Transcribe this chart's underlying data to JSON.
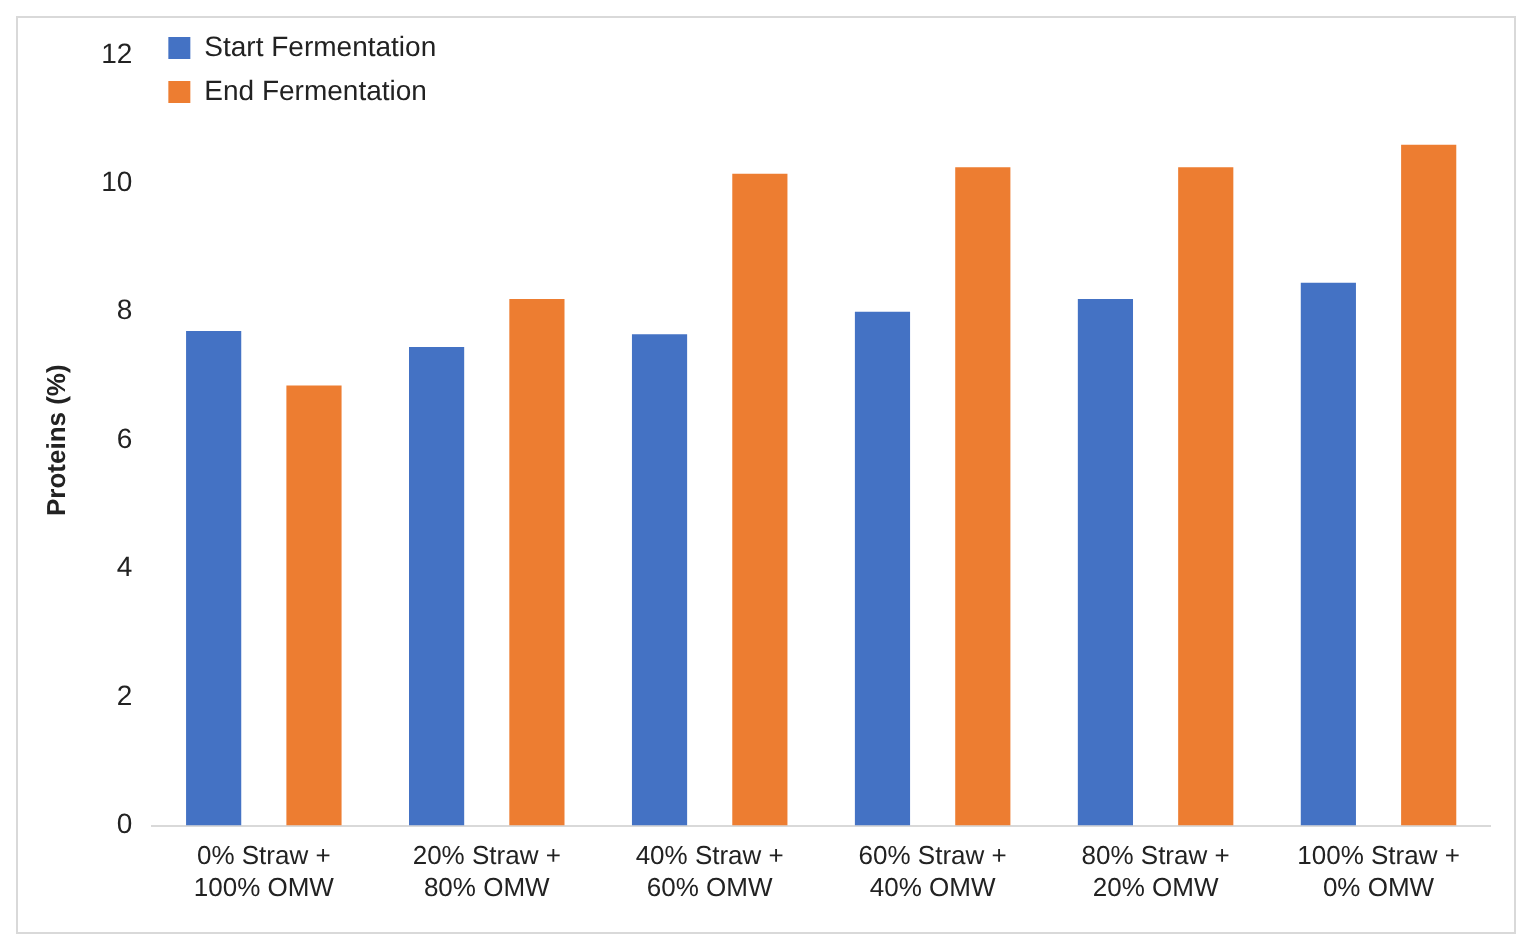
{
  "chart_data": {
    "type": "bar",
    "ylabel": "Proteins (%)",
    "categories": [
      "0% Straw + 100% OMW",
      "20% Straw + 80% OMW",
      "40% Straw + 60% OMW",
      "60% Straw + 40% OMW",
      "80% Straw + 20% OMW",
      "100% Straw + 0% OMW"
    ],
    "series": [
      {
        "name": "Start Fermentation",
        "color": "#4472c4",
        "values": [
          7.7,
          7.45,
          7.65,
          8.0,
          8.2,
          8.45
        ]
      },
      {
        "name": "End Fermentation",
        "color": "#ed7d31",
        "values": [
          6.85,
          8.2,
          10.15,
          10.25,
          10.25,
          10.6
        ]
      }
    ],
    "ylim": [
      0,
      12
    ],
    "yticks": [
      0,
      2,
      4,
      6,
      8,
      10,
      12
    ],
    "grid": false,
    "legend": "top left"
  }
}
